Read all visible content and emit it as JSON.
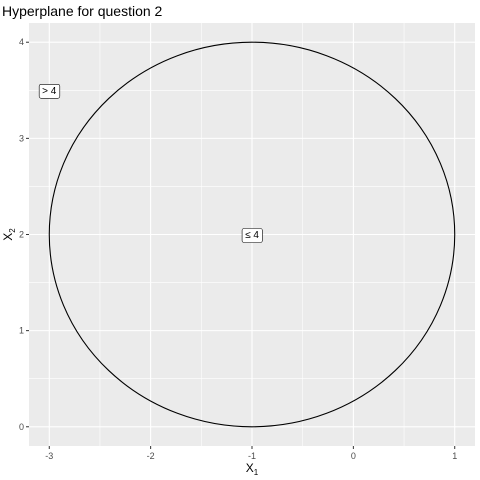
{
  "chart_data": {
    "type": "line",
    "title": "Hyperplane for question 2",
    "xlabel": {
      "main": "X",
      "sub": "1"
    },
    "ylabel": {
      "main": "X",
      "sub": "2"
    },
    "xlim": [
      -3.2,
      1.2
    ],
    "ylim": [
      -0.2,
      4.2
    ],
    "x_ticks": [
      -3,
      -2,
      -1,
      0,
      1
    ],
    "y_ticks": [
      0,
      1,
      2,
      3,
      4
    ],
    "x_minor_ticks": [
      -2.5,
      -1.5,
      -0.5,
      0.5
    ],
    "y_minor_ticks": [
      0.5,
      1.5,
      2.5,
      3.5
    ],
    "grid": true,
    "series": [
      {
        "shape": "circle",
        "center": [
          -1,
          2
        ],
        "radius": 2,
        "color": "#000000"
      }
    ],
    "annotations": [
      {
        "text": "> 4",
        "x": -3,
        "y": 3.5
      },
      {
        "text": "≤ 4",
        "x": -1,
        "y": 2
      }
    ],
    "colors": {
      "panel": "#ebebeb",
      "grid_major": "#ffffff",
      "tick_text": "#4d4d4d"
    }
  }
}
